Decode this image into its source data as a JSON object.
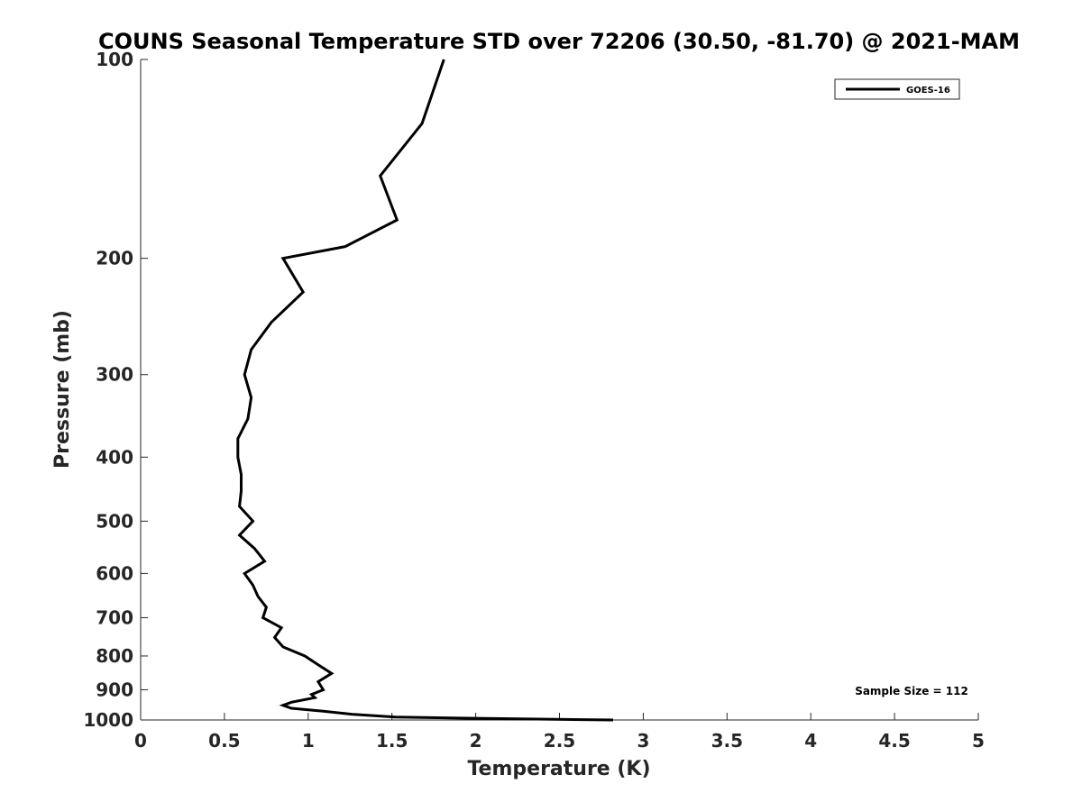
{
  "chart_data": {
    "type": "line",
    "title": "COUNS Seasonal Temperature STD over 72206 (30.50, -81.70) @ 2021-MAM",
    "xlabel": "Temperature (K)",
    "ylabel": "Pressure (mb)",
    "xlim": [
      0,
      5
    ],
    "ylim": [
      100,
      1000
    ],
    "y_scale": "log",
    "y_reversed": true,
    "grid": false,
    "legend": "top-right",
    "x_ticks": [
      0,
      0.5,
      1,
      1.5,
      2,
      2.5,
      3,
      3.5,
      4,
      4.5,
      5
    ],
    "x_tick_labels": [
      "0",
      "0.5",
      "1",
      "1.5",
      "2",
      "2.5",
      "3",
      "3.5",
      "4",
      "4.5",
      "5"
    ],
    "y_ticks": [
      100,
      200,
      300,
      400,
      500,
      600,
      700,
      800,
      900,
      1000
    ],
    "y_tick_labels": [
      "100",
      "200",
      "300",
      "400",
      "500",
      "600",
      "700",
      "800",
      "900",
      "1000"
    ],
    "annotation": "Sample Size = 112",
    "series": [
      {
        "name": "GOES-16",
        "color": "#000000",
        "points": [
          [
            1.81,
            100
          ],
          [
            1.68,
            125
          ],
          [
            1.43,
            150
          ],
          [
            1.53,
            175
          ],
          [
            1.22,
            192
          ],
          [
            0.85,
            200
          ],
          [
            0.97,
            225
          ],
          [
            0.78,
            250
          ],
          [
            0.66,
            275
          ],
          [
            0.62,
            300
          ],
          [
            0.66,
            325
          ],
          [
            0.64,
            350
          ],
          [
            0.58,
            375
          ],
          [
            0.58,
            400
          ],
          [
            0.6,
            425
          ],
          [
            0.6,
            450
          ],
          [
            0.59,
            475
          ],
          [
            0.67,
            500
          ],
          [
            0.59,
            525
          ],
          [
            0.68,
            550
          ],
          [
            0.74,
            575
          ],
          [
            0.62,
            600
          ],
          [
            0.67,
            625
          ],
          [
            0.7,
            650
          ],
          [
            0.75,
            675
          ],
          [
            0.73,
            700
          ],
          [
            0.84,
            725
          ],
          [
            0.8,
            750
          ],
          [
            0.85,
            775
          ],
          [
            0.98,
            800
          ],
          [
            1.06,
            825
          ],
          [
            1.14,
            850
          ],
          [
            1.06,
            875
          ],
          [
            1.09,
            900
          ],
          [
            1.02,
            915
          ],
          [
            1.04,
            925
          ],
          [
            0.9,
            940
          ],
          [
            0.85,
            950
          ],
          [
            0.9,
            960
          ],
          [
            1.09,
            970
          ],
          [
            1.26,
            980
          ],
          [
            1.52,
            990
          ],
          [
            2.0,
            994
          ],
          [
            2.82,
            1000
          ]
        ]
      }
    ]
  }
}
